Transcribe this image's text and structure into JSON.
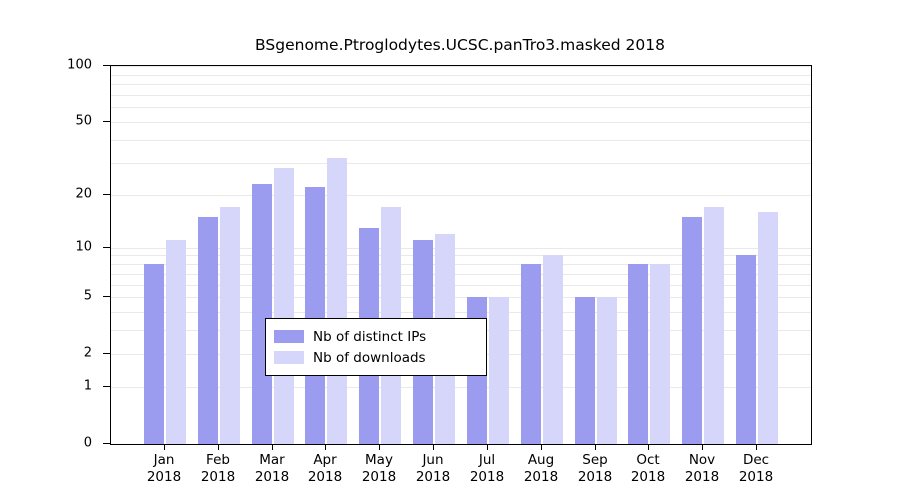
{
  "chart_data": {
    "type": "bar",
    "title": "BSgenome.Ptroglodytes.UCSC.panTro3.masked 2018",
    "categories": [
      "Jan 2018",
      "Feb 2018",
      "Mar 2018",
      "Apr 2018",
      "May 2018",
      "Jun 2018",
      "Jul 2018",
      "Aug 2018",
      "Sep 2018",
      "Oct 2018",
      "Nov 2018",
      "Dec 2018"
    ],
    "x_tick_month": [
      "Jan",
      "Feb",
      "Mar",
      "Apr",
      "May",
      "Jun",
      "Jul",
      "Aug",
      "Sep",
      "Oct",
      "Nov",
      "Dec"
    ],
    "x_tick_year": [
      "2018",
      "2018",
      "2018",
      "2018",
      "2018",
      "2018",
      "2018",
      "2018",
      "2018",
      "2018",
      "2018",
      "2018"
    ],
    "series": [
      {
        "name": "Nb of distinct IPs",
        "color": "#9b9bf0",
        "values": [
          8,
          15,
          23,
          22,
          13,
          11,
          5,
          8,
          5,
          8,
          15,
          9
        ]
      },
      {
        "name": "Nb of downloads",
        "color": "#d6d6fa",
        "values": [
          11,
          17,
          28,
          32,
          17,
          12,
          5,
          9,
          5,
          8,
          17,
          16
        ]
      }
    ],
    "y_ticks": [
      0,
      1,
      2,
      5,
      10,
      20,
      50,
      100
    ],
    "grid_values": [
      1,
      2,
      3,
      4,
      5,
      6,
      7,
      8,
      9,
      10,
      20,
      30,
      40,
      50,
      60,
      70,
      80,
      90,
      100
    ],
    "y_scale": "log10(1+x)",
    "ylim": [
      0,
      100
    ],
    "grid": true,
    "legend_position": "inside-bottom-center"
  }
}
